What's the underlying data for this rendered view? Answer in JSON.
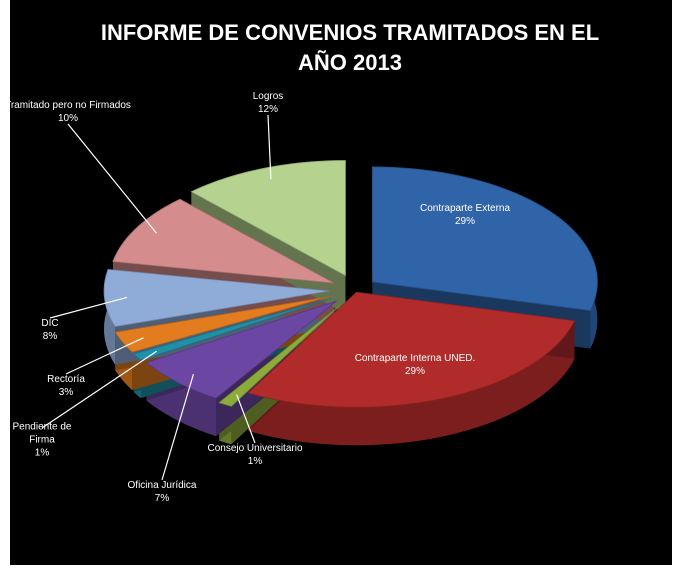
{
  "chart_data": {
    "type": "pie",
    "title": "INFORME DE CONVENIOS TRAMITADOS EN EL AÑO 2013",
    "categories": [
      "Contraparte Externa",
      "Contraparte Interna UNED.",
      "Consejo Universitario",
      "Oficina Jurídica",
      "Pendiente de Firma",
      "Rectoría",
      "DIC",
      "Tramitado pero no Firmados",
      "Logros"
    ],
    "values": [
      29,
      29,
      1,
      7,
      1,
      3,
      8,
      10,
      12
    ],
    "value_labels": [
      "29%",
      "29%",
      "1%",
      "7%",
      "1%",
      "3%",
      "8%",
      "10%",
      "12%"
    ],
    "colors": [
      "#2f64a9",
      "#b12b2b",
      "#8dab3a",
      "#6b46a2",
      "#1f90a6",
      "#e27c1f",
      "#8fabd8",
      "#d48c8c",
      "#b6d28f"
    ]
  }
}
